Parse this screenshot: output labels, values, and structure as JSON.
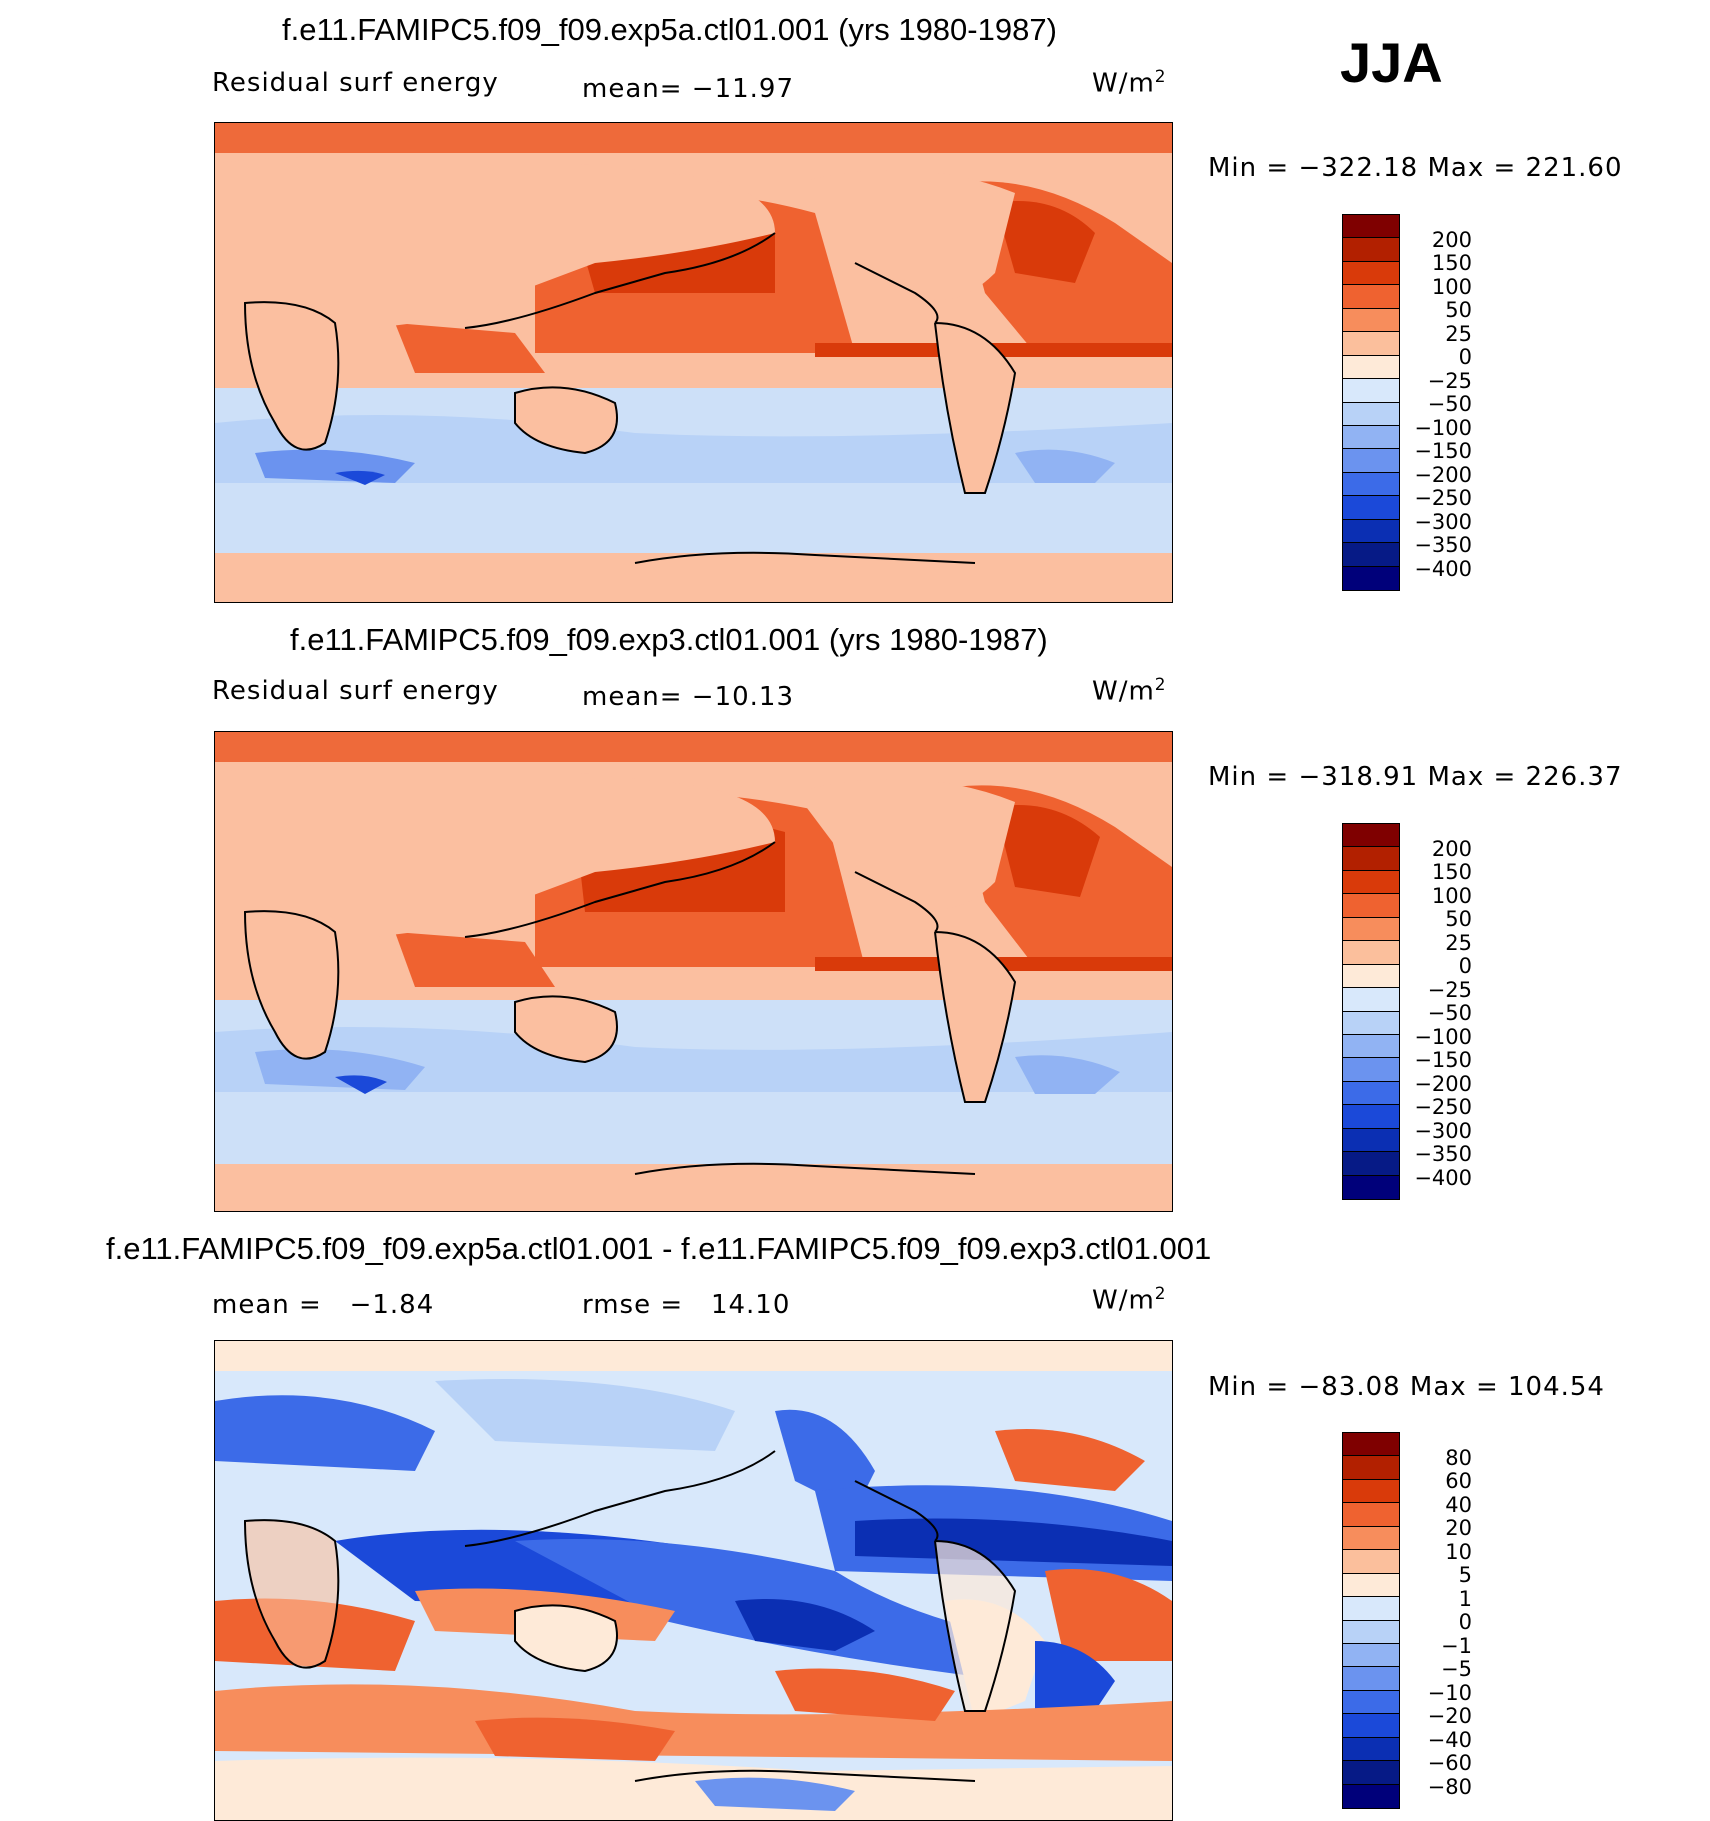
{
  "season": "JJA",
  "panels": [
    {
      "title": "f.e11.FAMIPC5.f09_f09.exp5a.ctl01.001 (yrs 1980-1987)",
      "left_label": "Residual surf energy",
      "mid_label": "mean= −11.97",
      "units": "W/m",
      "units_sup": "2",
      "minmax": "Min = −322.18 Max = 221.60",
      "colorbar_labels": [
        "200",
        "150",
        "100",
        "50",
        "25",
        "0",
        "−25",
        "−50",
        "−100",
        "−150",
        "−200",
        "−250",
        "−300",
        "−350",
        "−400"
      ]
    },
    {
      "title": "f.e11.FAMIPC5.f09_f09.exp3.ctl01.001 (yrs 1980-1987)",
      "left_label": "Residual surf energy",
      "mid_label": "mean= −10.13",
      "units": "W/m",
      "units_sup": "2",
      "minmax": "Min = −318.91 Max = 226.37",
      "colorbar_labels": [
        "200",
        "150",
        "100",
        "50",
        "25",
        "0",
        "−25",
        "−50",
        "−100",
        "−150",
        "−200",
        "−250",
        "−300",
        "−350",
        "−400"
      ]
    },
    {
      "title": "f.e11.FAMIPC5.f09_f09.exp5a.ctl01.001 - f.e11.FAMIPC5.f09_f09.exp3.ctl01.001",
      "left_label": "mean =   −1.84",
      "mid_label": "rmse =   14.10",
      "units": "W/m",
      "units_sup": "2",
      "minmax": "Min = −83.08 Max = 104.54",
      "colorbar_labels": [
        "80",
        "60",
        "40",
        "20",
        "10",
        "5",
        "1",
        "0",
        "−1",
        "−5",
        "−10",
        "−20",
        "−40",
        "−60",
        "−80"
      ]
    }
  ],
  "colors": {
    "scale": [
      "#7f0000",
      "#b22000",
      "#d93a0a",
      "#ef6230",
      "#f78d5c",
      "#fbbf9c",
      "#feead8",
      "#d8e8fb",
      "#b8d2f7",
      "#91b3f3",
      "#6b93ef",
      "#3c6be8",
      "#1b49d9",
      "#0b2fb3",
      "#061a86",
      "#00007a"
    ],
    "land": "#fbbfa0",
    "ocean_warm": "#ee6a3a",
    "ocean_cold": "#cde0f8"
  },
  "chart_data": [
    {
      "type": "heatmap",
      "title": "f.e11.FAMIPC5.f09_f09.exp5a.ctl01.001 (yrs 1980-1987)",
      "variable": "Residual surf energy",
      "units": "W/m2",
      "mean": -11.97,
      "min": -322.18,
      "max": 221.6,
      "levels": [
        -400,
        -350,
        -300,
        -250,
        -200,
        -150,
        -100,
        -50,
        -25,
        0,
        25,
        50,
        100,
        150,
        200
      ]
    },
    {
      "type": "heatmap",
      "title": "f.e11.FAMIPC5.f09_f09.exp3.ctl01.001 (yrs 1980-1987)",
      "variable": "Residual surf energy",
      "units": "W/m2",
      "mean": -10.13,
      "min": -318.91,
      "max": 226.37,
      "levels": [
        -400,
        -350,
        -300,
        -250,
        -200,
        -150,
        -100,
        -50,
        -25,
        0,
        25,
        50,
        100,
        150,
        200
      ]
    },
    {
      "type": "heatmap",
      "title": "f.e11.FAMIPC5.f09_f09.exp5a.ctl01.001 - f.e11.FAMIPC5.f09_f09.exp3.ctl01.001",
      "units": "W/m2",
      "mean": -1.84,
      "rmse": 14.1,
      "min": -83.08,
      "max": 104.54,
      "levels": [
        -80,
        -60,
        -40,
        -20,
        -10,
        -5,
        -1,
        0,
        1,
        5,
        10,
        20,
        40,
        60,
        80
      ]
    }
  ]
}
